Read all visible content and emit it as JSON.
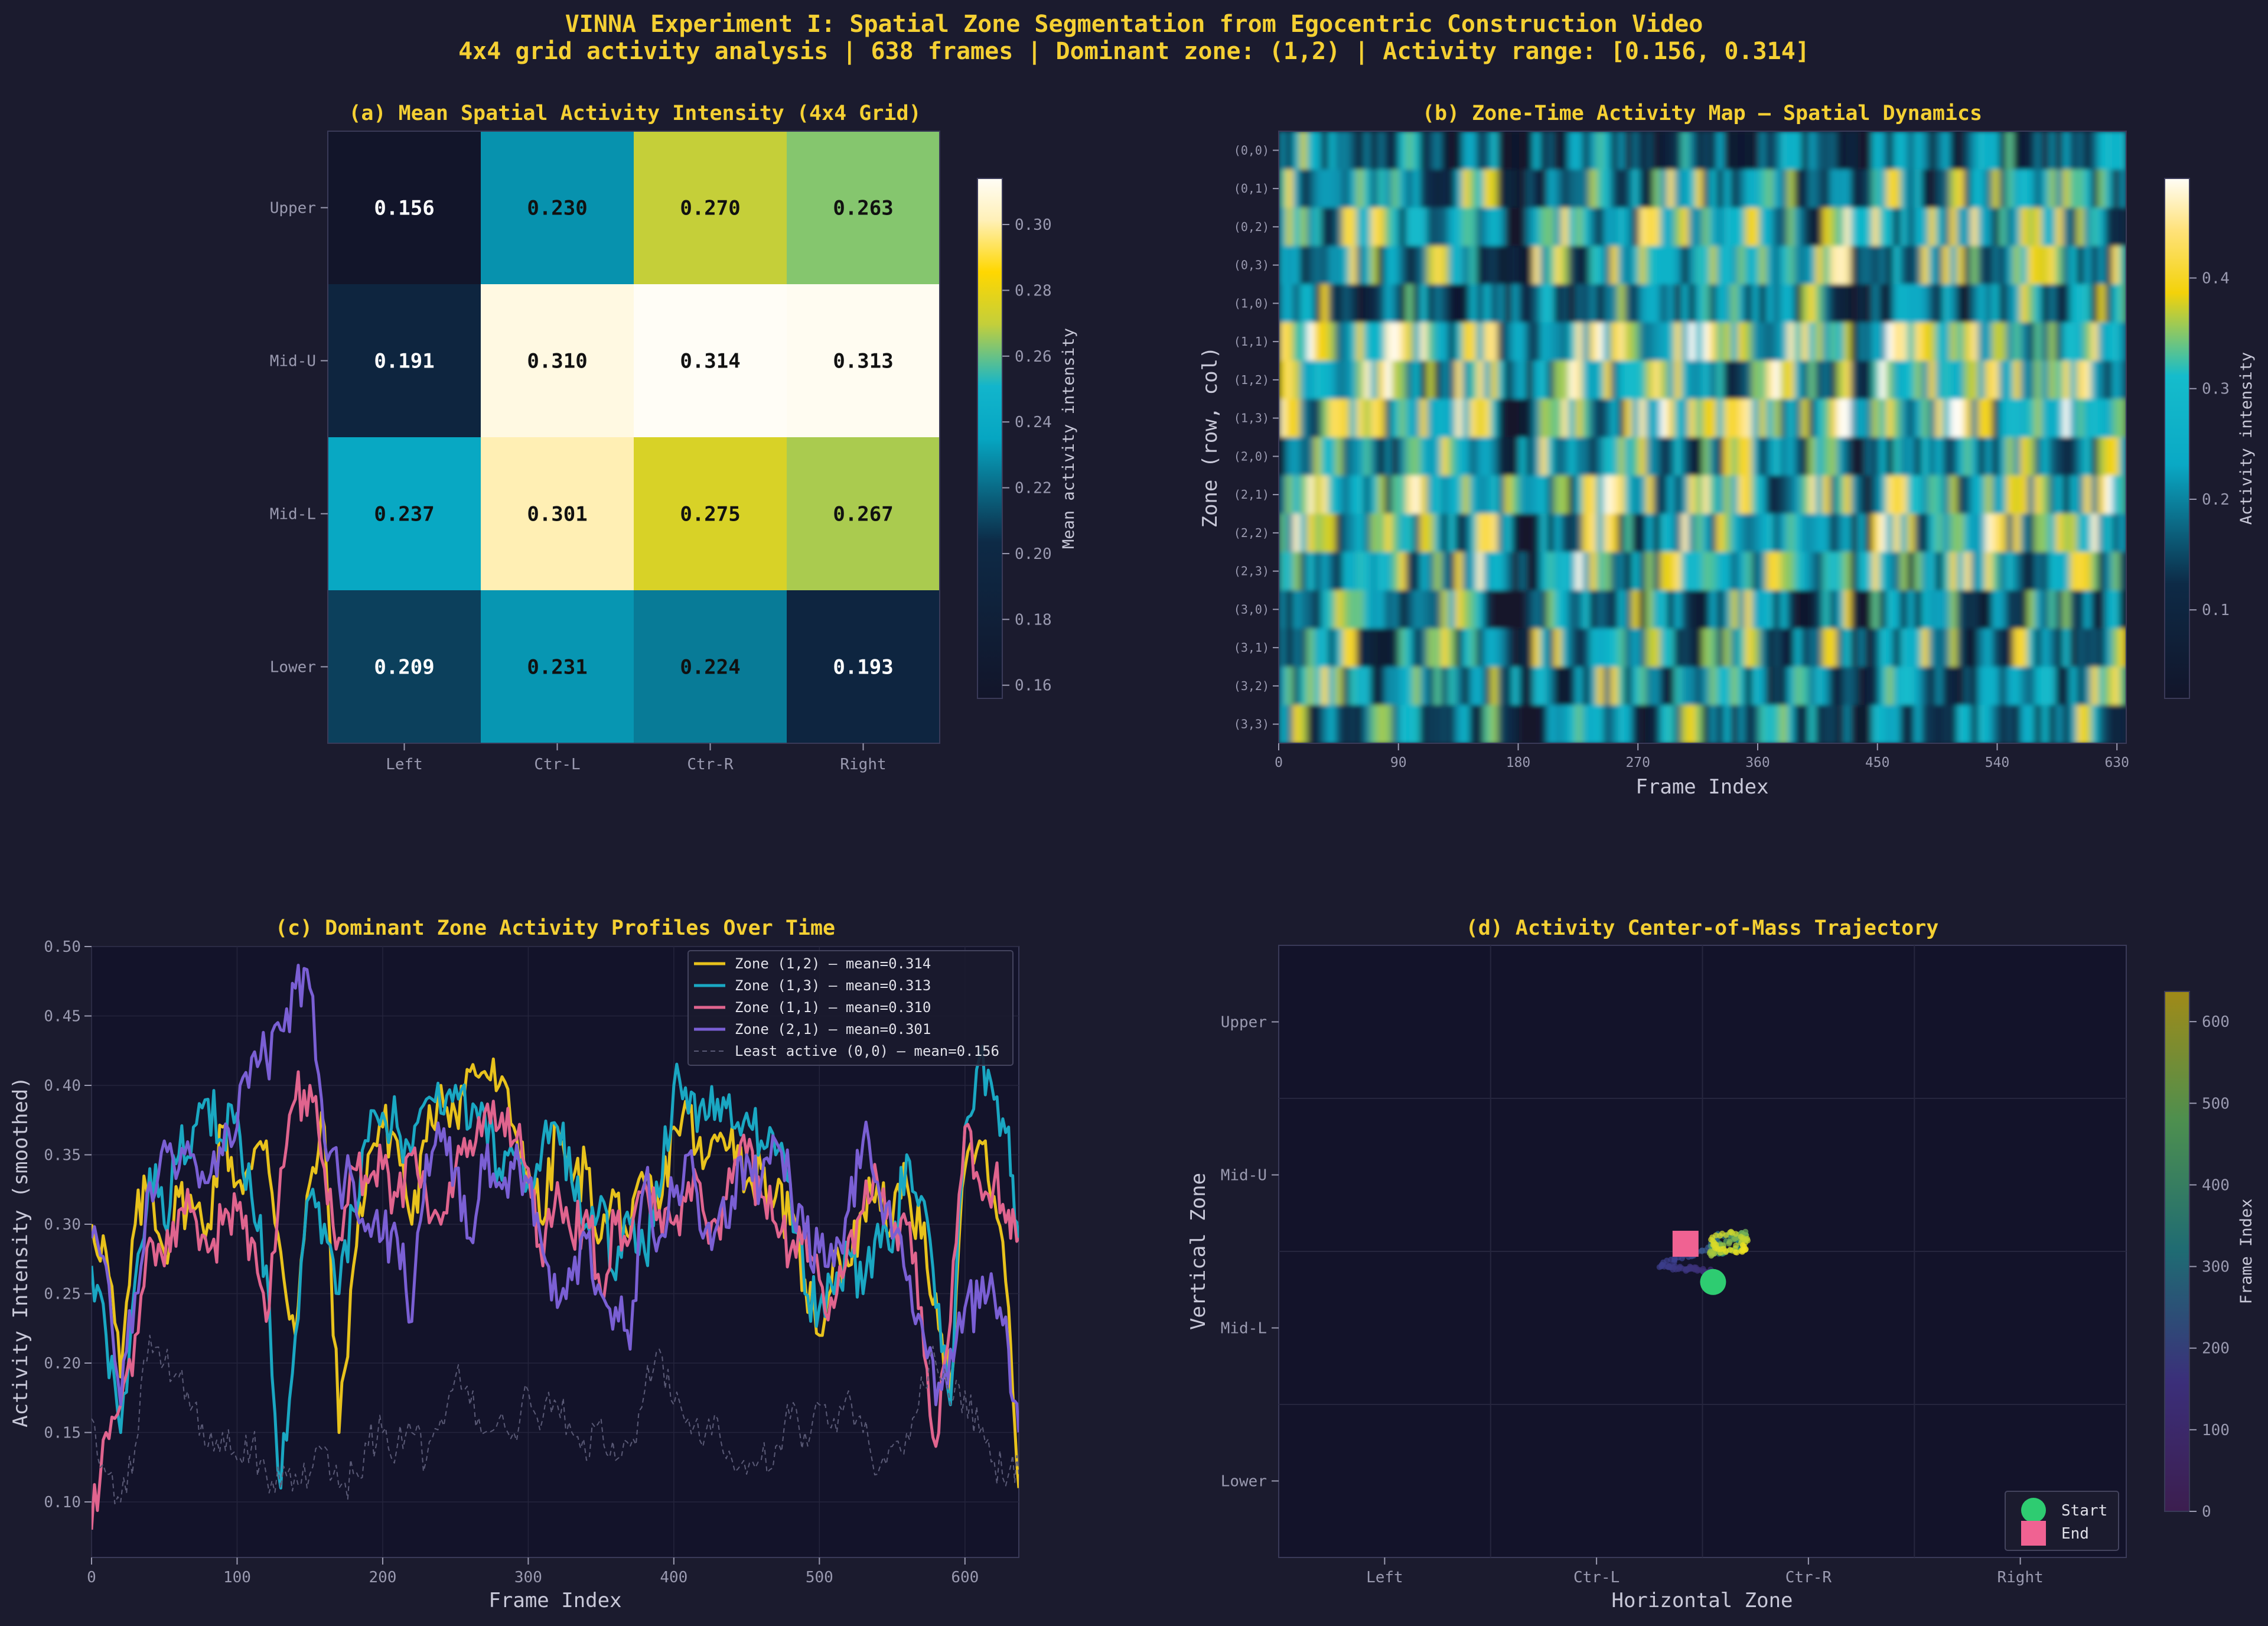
{
  "title": "VINNA Experiment I: Spatial Zone Segmentation from Egocentric Construction Video",
  "subtitle": "4x4 grid activity analysis  |  638 frames  |  Dominant zone: (1,2)  |  Activity range: [0.156, 0.314]",
  "colors": {
    "background": "#1b1b2e",
    "panel": "#13132a",
    "title": "#f5d033",
    "text": "#c8c8d8",
    "tick": "#9a9ab0"
  },
  "chart_data": [
    {
      "type": "heatmap",
      "panel": "a",
      "title": "(a)  Mean Spatial Activity Intensity (4x4 Grid)",
      "row_labels": [
        "Upper",
        "Mid-U",
        "Mid-L",
        "Lower"
      ],
      "col_labels": [
        "Left",
        "Ctr-L",
        "Ctr-R",
        "Right"
      ],
      "values": [
        [
          0.156,
          0.23,
          0.27,
          0.263
        ],
        [
          0.191,
          0.31,
          0.314,
          0.313
        ],
        [
          0.237,
          0.301,
          0.275,
          0.267
        ],
        [
          0.209,
          0.231,
          0.224,
          0.193
        ]
      ],
      "value_labels": [
        [
          "0.156",
          "0.230",
          "0.270",
          "0.263"
        ],
        [
          "0.191",
          "0.310",
          "0.314",
          "0.313"
        ],
        [
          "0.237",
          "0.301",
          "0.275",
          "0.267"
        ],
        [
          "0.209",
          "0.231",
          "0.224",
          "0.193"
        ]
      ],
      "colorbar": {
        "label": "Mean activity intensity",
        "range": [
          0.156,
          0.314
        ],
        "ticks": [
          "0.30",
          "0.28",
          "0.26",
          "0.24",
          "0.22",
          "0.20",
          "0.18",
          "0.16"
        ],
        "tick_values": [
          0.3,
          0.28,
          0.26,
          0.24,
          0.22,
          0.2,
          0.18,
          0.16
        ]
      }
    },
    {
      "type": "heatmap",
      "panel": "b",
      "title": "(b)  Zone-Time Activity Map — Spatial Dynamics",
      "xlabel": "Frame Index",
      "ylabel": "Zone (row, col)",
      "x_ticks": [
        "0",
        "90",
        "180",
        "270",
        "360",
        "450",
        "540",
        "630"
      ],
      "x_tick_values": [
        0,
        90,
        180,
        270,
        360,
        450,
        540,
        630
      ],
      "xlim": [
        0,
        637
      ],
      "zone_labels": [
        "(0,0)",
        "(0,1)",
        "(0,2)",
        "(0,3)",
        "(1,0)",
        "(1,1)",
        "(1,2)",
        "(1,3)",
        "(2,0)",
        "(2,1)",
        "(2,2)",
        "(2,3)",
        "(3,0)",
        "(3,1)",
        "(3,2)",
        "(3,3)"
      ],
      "zone_means": [
        0.156,
        0.23,
        0.27,
        0.263,
        0.191,
        0.31,
        0.314,
        0.313,
        0.237,
        0.301,
        0.275,
        0.267,
        0.209,
        0.231,
        0.224,
        0.193
      ],
      "colorbar": {
        "label": "Activity intensity",
        "range": [
          0.02,
          0.49
        ],
        "ticks": [
          "0.4",
          "0.3",
          "0.2",
          "0.1"
        ],
        "tick_values": [
          0.4,
          0.3,
          0.2,
          0.1
        ]
      }
    },
    {
      "type": "line",
      "panel": "c",
      "title": "(c)  Dominant Zone Activity Profiles Over Time",
      "xlabel": "Frame Index",
      "ylabel": "Activity Intensity (smoothed)",
      "xlim": [
        0,
        637
      ],
      "ylim": [
        0.06,
        0.5
      ],
      "x_ticks": [
        "0",
        "100",
        "200",
        "300",
        "400",
        "500",
        "600"
      ],
      "x_tick_values": [
        0,
        100,
        200,
        300,
        400,
        500,
        600
      ],
      "y_ticks": [
        "0.50",
        "0.45",
        "0.40",
        "0.35",
        "0.30",
        "0.25",
        "0.20",
        "0.15",
        "0.10"
      ],
      "y_tick_values": [
        0.5,
        0.45,
        0.4,
        0.35,
        0.3,
        0.25,
        0.2,
        0.15,
        0.1
      ],
      "legend_position": "top-right",
      "series": [
        {
          "name": "Zone (1,2) — mean=0.314",
          "color": "#e8c21c",
          "style": "solid",
          "x": [
            0,
            10,
            20,
            30,
            40,
            50,
            60,
            70,
            80,
            90,
            100,
            110,
            120,
            130,
            140,
            150,
            160,
            170,
            180,
            190,
            200,
            210,
            220,
            230,
            240,
            250,
            260,
            270,
            280,
            290,
            300,
            310,
            320,
            330,
            340,
            350,
            360,
            370,
            380,
            390,
            400,
            410,
            420,
            430,
            440,
            450,
            460,
            470,
            480,
            490,
            500,
            510,
            520,
            530,
            540,
            550,
            560,
            570,
            580,
            590,
            600,
            610,
            620,
            630,
            637
          ],
          "y": [
            0.3,
            0.28,
            0.19,
            0.3,
            0.33,
            0.28,
            0.32,
            0.31,
            0.3,
            0.37,
            0.33,
            0.34,
            0.36,
            0.28,
            0.22,
            0.33,
            0.37,
            0.15,
            0.27,
            0.35,
            0.37,
            0.36,
            0.3,
            0.36,
            0.4,
            0.38,
            0.41,
            0.41,
            0.4,
            0.37,
            0.34,
            0.3,
            0.37,
            0.33,
            0.34,
            0.29,
            0.32,
            0.29,
            0.33,
            0.31,
            0.37,
            0.38,
            0.34,
            0.36,
            0.37,
            0.33,
            0.34,
            0.32,
            0.3,
            0.26,
            0.22,
            0.28,
            0.27,
            0.31,
            0.33,
            0.3,
            0.33,
            0.29,
            0.25,
            0.18,
            0.34,
            0.36,
            0.32,
            0.24,
            0.11
          ]
        },
        {
          "name": "Zone (1,3) — mean=0.313",
          "color": "#1aa7c2",
          "style": "solid",
          "x": [
            0,
            10,
            20,
            30,
            40,
            50,
            60,
            70,
            80,
            90,
            100,
            110,
            120,
            130,
            140,
            150,
            160,
            170,
            180,
            190,
            200,
            210,
            220,
            230,
            240,
            250,
            260,
            270,
            280,
            290,
            300,
            310,
            320,
            330,
            340,
            350,
            360,
            370,
            380,
            390,
            400,
            410,
            420,
            430,
            440,
            450,
            460,
            470,
            480,
            490,
            500,
            510,
            520,
            530,
            540,
            550,
            560,
            570,
            580,
            590,
            600,
            610,
            620,
            630,
            637
          ],
          "y": [
            0.27,
            0.22,
            0.15,
            0.26,
            0.34,
            0.3,
            0.35,
            0.37,
            0.39,
            0.36,
            0.38,
            0.32,
            0.27,
            0.11,
            0.22,
            0.32,
            0.3,
            0.25,
            0.31,
            0.36,
            0.38,
            0.37,
            0.35,
            0.39,
            0.38,
            0.4,
            0.37,
            0.38,
            0.34,
            0.35,
            0.33,
            0.36,
            0.37,
            0.33,
            0.3,
            0.32,
            0.26,
            0.3,
            0.28,
            0.32,
            0.4,
            0.38,
            0.39,
            0.39,
            0.37,
            0.38,
            0.36,
            0.35,
            0.33,
            0.25,
            0.24,
            0.25,
            0.28,
            0.25,
            0.3,
            0.28,
            0.35,
            0.32,
            0.24,
            0.17,
            0.37,
            0.42,
            0.39,
            0.37,
            0.29
          ]
        },
        {
          "name": "Zone (1,1) — mean=0.310",
          "color": "#e0648e",
          "style": "solid",
          "x": [
            0,
            10,
            20,
            30,
            40,
            50,
            60,
            70,
            80,
            90,
            100,
            110,
            120,
            130,
            140,
            150,
            160,
            170,
            180,
            190,
            200,
            210,
            220,
            230,
            240,
            250,
            260,
            270,
            280,
            290,
            300,
            310,
            320,
            330,
            340,
            350,
            360,
            370,
            380,
            390,
            400,
            410,
            420,
            430,
            440,
            450,
            460,
            470,
            480,
            490,
            500,
            510,
            520,
            530,
            540,
            550,
            560,
            570,
            580,
            590,
            600,
            610,
            620,
            630,
            637
          ],
          "y": [
            0.08,
            0.15,
            0.17,
            0.22,
            0.29,
            0.27,
            0.31,
            0.31,
            0.28,
            0.3,
            0.31,
            0.29,
            0.23,
            0.34,
            0.39,
            0.4,
            0.34,
            0.29,
            0.34,
            0.33,
            0.34,
            0.32,
            0.35,
            0.32,
            0.3,
            0.34,
            0.36,
            0.38,
            0.37,
            0.36,
            0.34,
            0.27,
            0.33,
            0.29,
            0.31,
            0.25,
            0.3,
            0.29,
            0.33,
            0.31,
            0.3,
            0.33,
            0.31,
            0.3,
            0.33,
            0.35,
            0.32,
            0.3,
            0.28,
            0.3,
            0.26,
            0.24,
            0.29,
            0.31,
            0.33,
            0.29,
            0.3,
            0.24,
            0.14,
            0.23,
            0.37,
            0.33,
            0.33,
            0.31,
            0.29
          ]
        },
        {
          "name": "Zone (2,1) — mean=0.301",
          "color": "#7a5fd4",
          "style": "solid",
          "x": [
            0,
            10,
            20,
            30,
            40,
            50,
            60,
            70,
            80,
            90,
            100,
            110,
            120,
            130,
            140,
            150,
            160,
            170,
            180,
            190,
            200,
            210,
            220,
            230,
            240,
            250,
            260,
            270,
            280,
            290,
            300,
            310,
            320,
            330,
            340,
            350,
            360,
            370,
            380,
            390,
            400,
            410,
            420,
            430,
            440,
            450,
            460,
            470,
            480,
            490,
            500,
            510,
            520,
            530,
            540,
            550,
            560,
            570,
            580,
            590,
            600,
            610,
            620,
            630,
            637
          ],
          "y": [
            0.29,
            0.27,
            0.17,
            0.25,
            0.33,
            0.36,
            0.34,
            0.35,
            0.33,
            0.35,
            0.37,
            0.42,
            0.42,
            0.44,
            0.47,
            0.47,
            0.36,
            0.33,
            0.33,
            0.3,
            0.29,
            0.29,
            0.23,
            0.35,
            0.36,
            0.34,
            0.29,
            0.34,
            0.33,
            0.34,
            0.33,
            0.28,
            0.24,
            0.26,
            0.29,
            0.25,
            0.24,
            0.21,
            0.33,
            0.29,
            0.32,
            0.35,
            0.29,
            0.3,
            0.32,
            0.35,
            0.33,
            0.36,
            0.33,
            0.29,
            0.28,
            0.27,
            0.31,
            0.36,
            0.33,
            0.29,
            0.26,
            0.23,
            0.17,
            0.21,
            0.24,
            0.24,
            0.25,
            0.21,
            0.15
          ]
        },
        {
          "name": "Least active (0,0) — mean=0.156",
          "color": "#5a5a76",
          "style": "dashed",
          "x": [
            0,
            10,
            20,
            30,
            40,
            50,
            60,
            70,
            80,
            90,
            100,
            110,
            120,
            130,
            140,
            150,
            160,
            170,
            180,
            190,
            200,
            210,
            220,
            230,
            240,
            250,
            260,
            270,
            280,
            290,
            300,
            310,
            320,
            330,
            340,
            350,
            360,
            370,
            380,
            390,
            400,
            410,
            420,
            430,
            440,
            450,
            460,
            470,
            480,
            490,
            500,
            510,
            520,
            530,
            540,
            550,
            560,
            570,
            580,
            590,
            600,
            610,
            620,
            630,
            637
          ],
          "y": [
            0.16,
            0.12,
            0.1,
            0.14,
            0.22,
            0.2,
            0.19,
            0.17,
            0.14,
            0.15,
            0.13,
            0.14,
            0.12,
            0.11,
            0.12,
            0.12,
            0.14,
            0.11,
            0.12,
            0.14,
            0.15,
            0.14,
            0.15,
            0.13,
            0.16,
            0.19,
            0.17,
            0.15,
            0.16,
            0.15,
            0.18,
            0.16,
            0.17,
            0.15,
            0.13,
            0.16,
            0.13,
            0.14,
            0.18,
            0.21,
            0.17,
            0.16,
            0.14,
            0.16,
            0.13,
            0.12,
            0.13,
            0.14,
            0.16,
            0.15,
            0.17,
            0.16,
            0.18,
            0.15,
            0.12,
            0.14,
            0.15,
            0.19,
            0.2,
            0.17,
            0.18,
            0.15,
            0.13,
            0.12,
            0.12
          ]
        }
      ]
    },
    {
      "type": "scatter",
      "panel": "d",
      "title": "(d)  Activity Center-of-Mass Trajectory",
      "xlabel": "Horizontal Zone",
      "ylabel": "Vertical Zone",
      "xlim": [
        -0.5,
        3.5
      ],
      "ylim": [
        -0.5,
        3.5
      ],
      "x_ticks": [
        "Left",
        "Ctr-L",
        "Ctr-R",
        "Right"
      ],
      "y_ticks": [
        "Upper",
        "Mid-U",
        "Mid-L",
        "Lower"
      ],
      "trajectory": {
        "frames": [
          0,
          637
        ],
        "x_range": [
          1.3,
          1.75
        ],
        "y_range": [
          1.3,
          1.72
        ],
        "start": [
          1.55,
          1.7
        ],
        "end": [
          1.42,
          1.45
        ]
      },
      "legend": [
        "Start",
        "End"
      ],
      "legend_position": "lower-right",
      "start_color": "#2ecc71",
      "end_color": "#f06292",
      "colorbar": {
        "label": "Frame Index",
        "range": [
          0,
          637
        ],
        "ticks": [
          "600",
          "500",
          "400",
          "300",
          "200",
          "100",
          "0"
        ],
        "tick_values": [
          600,
          500,
          400,
          300,
          200,
          100,
          0
        ]
      }
    }
  ]
}
